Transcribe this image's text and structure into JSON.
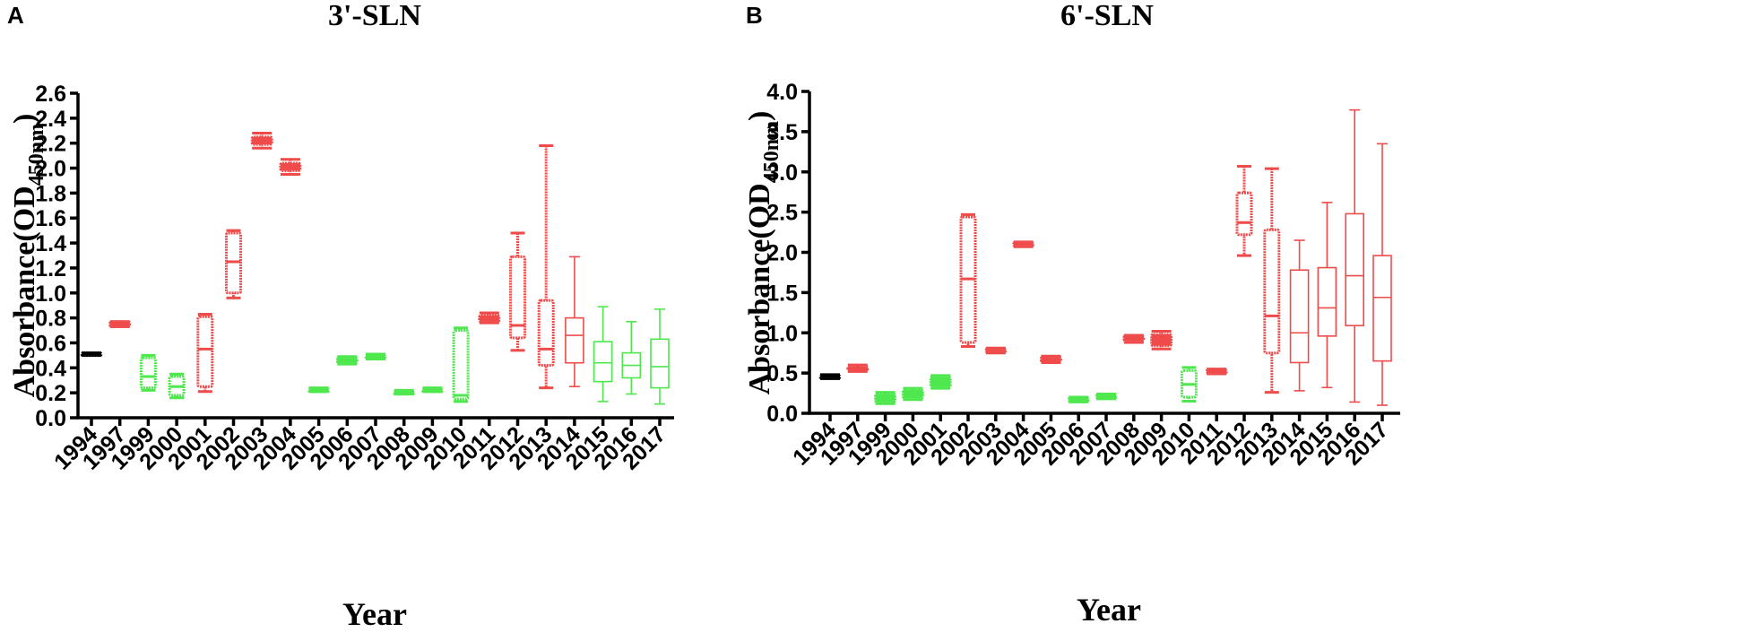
{
  "colors": {
    "black": "#000000",
    "red": "#ef4b4b",
    "green": "#4ee84e"
  },
  "chart_data": [
    {
      "type": "box",
      "panel_label": "A",
      "title": "3'-SLN",
      "xlabel": "Year",
      "ylabel_main": "Absorbance(OD",
      "ylabel_sub": "450nm",
      "ylabel_close": ")",
      "ylim": [
        0,
        2.6
      ],
      "yticks": [
        "0.0",
        "0.2",
        "0.4",
        "0.6",
        "0.8",
        "1.0",
        "1.2",
        "1.4",
        "1.6",
        "1.8",
        "2.0",
        "2.2",
        "2.4",
        "2.6"
      ],
      "series": [
        {
          "category": "1994",
          "min": 0.5,
          "q1": 0.5,
          "median": 0.51,
          "q3": 0.52,
          "max": 0.52,
          "color": "black",
          "style": "dense"
        },
        {
          "category": "1997",
          "min": 0.73,
          "q1": 0.73,
          "median": 0.75,
          "q3": 0.77,
          "max": 0.77,
          "color": "red",
          "style": "dense"
        },
        {
          "category": "1999",
          "min": 0.22,
          "q1": 0.24,
          "median": 0.33,
          "q3": 0.48,
          "max": 0.5,
          "color": "green",
          "style": "dense"
        },
        {
          "category": "2000",
          "min": 0.16,
          "q1": 0.18,
          "median": 0.25,
          "q3": 0.33,
          "max": 0.35,
          "color": "green",
          "style": "dense"
        },
        {
          "category": "2001",
          "min": 0.21,
          "q1": 0.25,
          "median": 0.55,
          "q3": 0.81,
          "max": 0.83,
          "color": "red",
          "style": "dense"
        },
        {
          "category": "2002",
          "min": 0.96,
          "q1": 1.0,
          "median": 1.25,
          "q3": 1.48,
          "max": 1.5,
          "color": "red",
          "style": "dense"
        },
        {
          "category": "2003",
          "min": 2.16,
          "q1": 2.19,
          "median": 2.22,
          "q3": 2.25,
          "max": 2.28,
          "color": "red",
          "style": "dense"
        },
        {
          "category": "2004",
          "min": 1.95,
          "q1": 1.98,
          "median": 2.01,
          "q3": 2.04,
          "max": 2.07,
          "color": "red",
          "style": "dense"
        },
        {
          "category": "2005",
          "min": 0.21,
          "q1": 0.21,
          "median": 0.22,
          "q3": 0.23,
          "max": 0.24,
          "color": "green",
          "style": "dense"
        },
        {
          "category": "2006",
          "min": 0.43,
          "q1": 0.44,
          "median": 0.46,
          "q3": 0.48,
          "max": 0.49,
          "color": "green",
          "style": "dense"
        },
        {
          "category": "2007",
          "min": 0.47,
          "q1": 0.48,
          "median": 0.49,
          "q3": 0.5,
          "max": 0.51,
          "color": "green",
          "style": "dense"
        },
        {
          "category": "2008",
          "min": 0.19,
          "q1": 0.19,
          "median": 0.2,
          "q3": 0.21,
          "max": 0.22,
          "color": "green",
          "style": "dense"
        },
        {
          "category": "2009",
          "min": 0.21,
          "q1": 0.21,
          "median": 0.22,
          "q3": 0.23,
          "max": 0.24,
          "color": "green",
          "style": "dense"
        },
        {
          "category": "2010",
          "min": 0.13,
          "q1": 0.15,
          "median": 0.18,
          "q3": 0.7,
          "max": 0.72,
          "color": "green",
          "style": "dense"
        },
        {
          "category": "2011",
          "min": 0.76,
          "q1": 0.77,
          "median": 0.8,
          "q3": 0.82,
          "max": 0.84,
          "color": "red",
          "style": "dense"
        },
        {
          "category": "2012",
          "min": 0.54,
          "q1": 0.64,
          "median": 0.74,
          "q3": 1.29,
          "max": 1.48,
          "color": "red",
          "style": "dense"
        },
        {
          "category": "2013",
          "min": 0.24,
          "q1": 0.42,
          "median": 0.55,
          "q3": 0.94,
          "max": 2.18,
          "color": "red",
          "style": "dense"
        },
        {
          "category": "2014",
          "min": 0.25,
          "q1": 0.44,
          "median": 0.66,
          "q3": 0.8,
          "max": 1.29,
          "color": "red",
          "style": "open"
        },
        {
          "category": "2015",
          "min": 0.13,
          "q1": 0.29,
          "median": 0.44,
          "q3": 0.61,
          "max": 0.89,
          "color": "green",
          "style": "open"
        },
        {
          "category": "2016",
          "min": 0.19,
          "q1": 0.32,
          "median": 0.42,
          "q3": 0.52,
          "max": 0.77,
          "color": "green",
          "style": "open"
        },
        {
          "category": "2017",
          "min": 0.11,
          "q1": 0.24,
          "median": 0.41,
          "q3": 0.63,
          "max": 0.87,
          "color": "green",
          "style": "open"
        }
      ]
    },
    {
      "type": "box",
      "panel_label": "B",
      "title": "6'-SLN",
      "xlabel": "Year",
      "ylabel_main": "Absorbance(OD",
      "ylabel_sub": "450nm",
      "ylabel_close": ")",
      "ylim": [
        0,
        4.0
      ],
      "yticks": [
        "0.0",
        "0.5",
        "1.0",
        "1.5",
        "2.0",
        "2.5",
        "3.0",
        "3.5",
        "4.0"
      ],
      "series": [
        {
          "category": "1994",
          "min": 0.43,
          "q1": 0.44,
          "median": 0.46,
          "q3": 0.47,
          "max": 0.48,
          "color": "black",
          "style": "dense"
        },
        {
          "category": "1997",
          "min": 0.52,
          "q1": 0.53,
          "median": 0.56,
          "q3": 0.58,
          "max": 0.6,
          "color": "red",
          "style": "dense"
        },
        {
          "category": "1999",
          "min": 0.12,
          "q1": 0.14,
          "median": 0.19,
          "q3": 0.24,
          "max": 0.26,
          "color": "green",
          "style": "dense"
        },
        {
          "category": "2000",
          "min": 0.17,
          "q1": 0.19,
          "median": 0.24,
          "q3": 0.29,
          "max": 0.31,
          "color": "green",
          "style": "dense"
        },
        {
          "category": "2001",
          "min": 0.31,
          "q1": 0.33,
          "median": 0.39,
          "q3": 0.45,
          "max": 0.47,
          "color": "green",
          "style": "dense"
        },
        {
          "category": "2002",
          "min": 0.83,
          "q1": 0.88,
          "median": 1.67,
          "q3": 2.44,
          "max": 2.47,
          "color": "red",
          "style": "dense"
        },
        {
          "category": "2003",
          "min": 0.75,
          "q1": 0.76,
          "median": 0.78,
          "q3": 0.8,
          "max": 0.81,
          "color": "red",
          "style": "dense"
        },
        {
          "category": "2004",
          "min": 2.07,
          "q1": 2.08,
          "median": 2.1,
          "q3": 2.12,
          "max": 2.13,
          "color": "red",
          "style": "dense"
        },
        {
          "category": "2005",
          "min": 0.63,
          "q1": 0.64,
          "median": 0.67,
          "q3": 0.7,
          "max": 0.71,
          "color": "red",
          "style": "dense"
        },
        {
          "category": "2006",
          "min": 0.14,
          "q1": 0.15,
          "median": 0.17,
          "q3": 0.19,
          "max": 0.2,
          "color": "green",
          "style": "dense"
        },
        {
          "category": "2007",
          "min": 0.18,
          "q1": 0.19,
          "median": 0.21,
          "q3": 0.23,
          "max": 0.24,
          "color": "green",
          "style": "dense"
        },
        {
          "category": "2008",
          "min": 0.88,
          "q1": 0.9,
          "median": 0.93,
          "q3": 0.96,
          "max": 0.97,
          "color": "red",
          "style": "dense"
        },
        {
          "category": "2009",
          "min": 0.8,
          "q1": 0.84,
          "median": 0.92,
          "q3": 0.98,
          "max": 1.02,
          "color": "red",
          "style": "dense"
        },
        {
          "category": "2010",
          "min": 0.15,
          "q1": 0.2,
          "median": 0.36,
          "q3": 0.53,
          "max": 0.57,
          "color": "green",
          "style": "dense"
        },
        {
          "category": "2011",
          "min": 0.49,
          "q1": 0.5,
          "median": 0.52,
          "q3": 0.54,
          "max": 0.55,
          "color": "red",
          "style": "dense"
        },
        {
          "category": "2012",
          "min": 1.96,
          "q1": 2.22,
          "median": 2.37,
          "q3": 2.74,
          "max": 3.07,
          "color": "red",
          "style": "dense"
        },
        {
          "category": "2013",
          "min": 0.26,
          "q1": 0.75,
          "median": 1.21,
          "q3": 2.28,
          "max": 3.04,
          "color": "red",
          "style": "dense"
        },
        {
          "category": "2014",
          "min": 0.28,
          "q1": 0.63,
          "median": 1.0,
          "q3": 1.78,
          "max": 2.15,
          "color": "red",
          "style": "open"
        },
        {
          "category": "2015",
          "min": 0.32,
          "q1": 0.96,
          "median": 1.31,
          "q3": 1.81,
          "max": 2.62,
          "color": "red",
          "style": "open"
        },
        {
          "category": "2016",
          "min": 0.14,
          "q1": 1.09,
          "median": 1.71,
          "q3": 2.48,
          "max": 3.77,
          "color": "red",
          "style": "open"
        },
        {
          "category": "2017",
          "min": 0.1,
          "q1": 0.65,
          "median": 1.44,
          "q3": 1.96,
          "max": 3.35,
          "color": "red",
          "style": "open"
        }
      ]
    }
  ]
}
